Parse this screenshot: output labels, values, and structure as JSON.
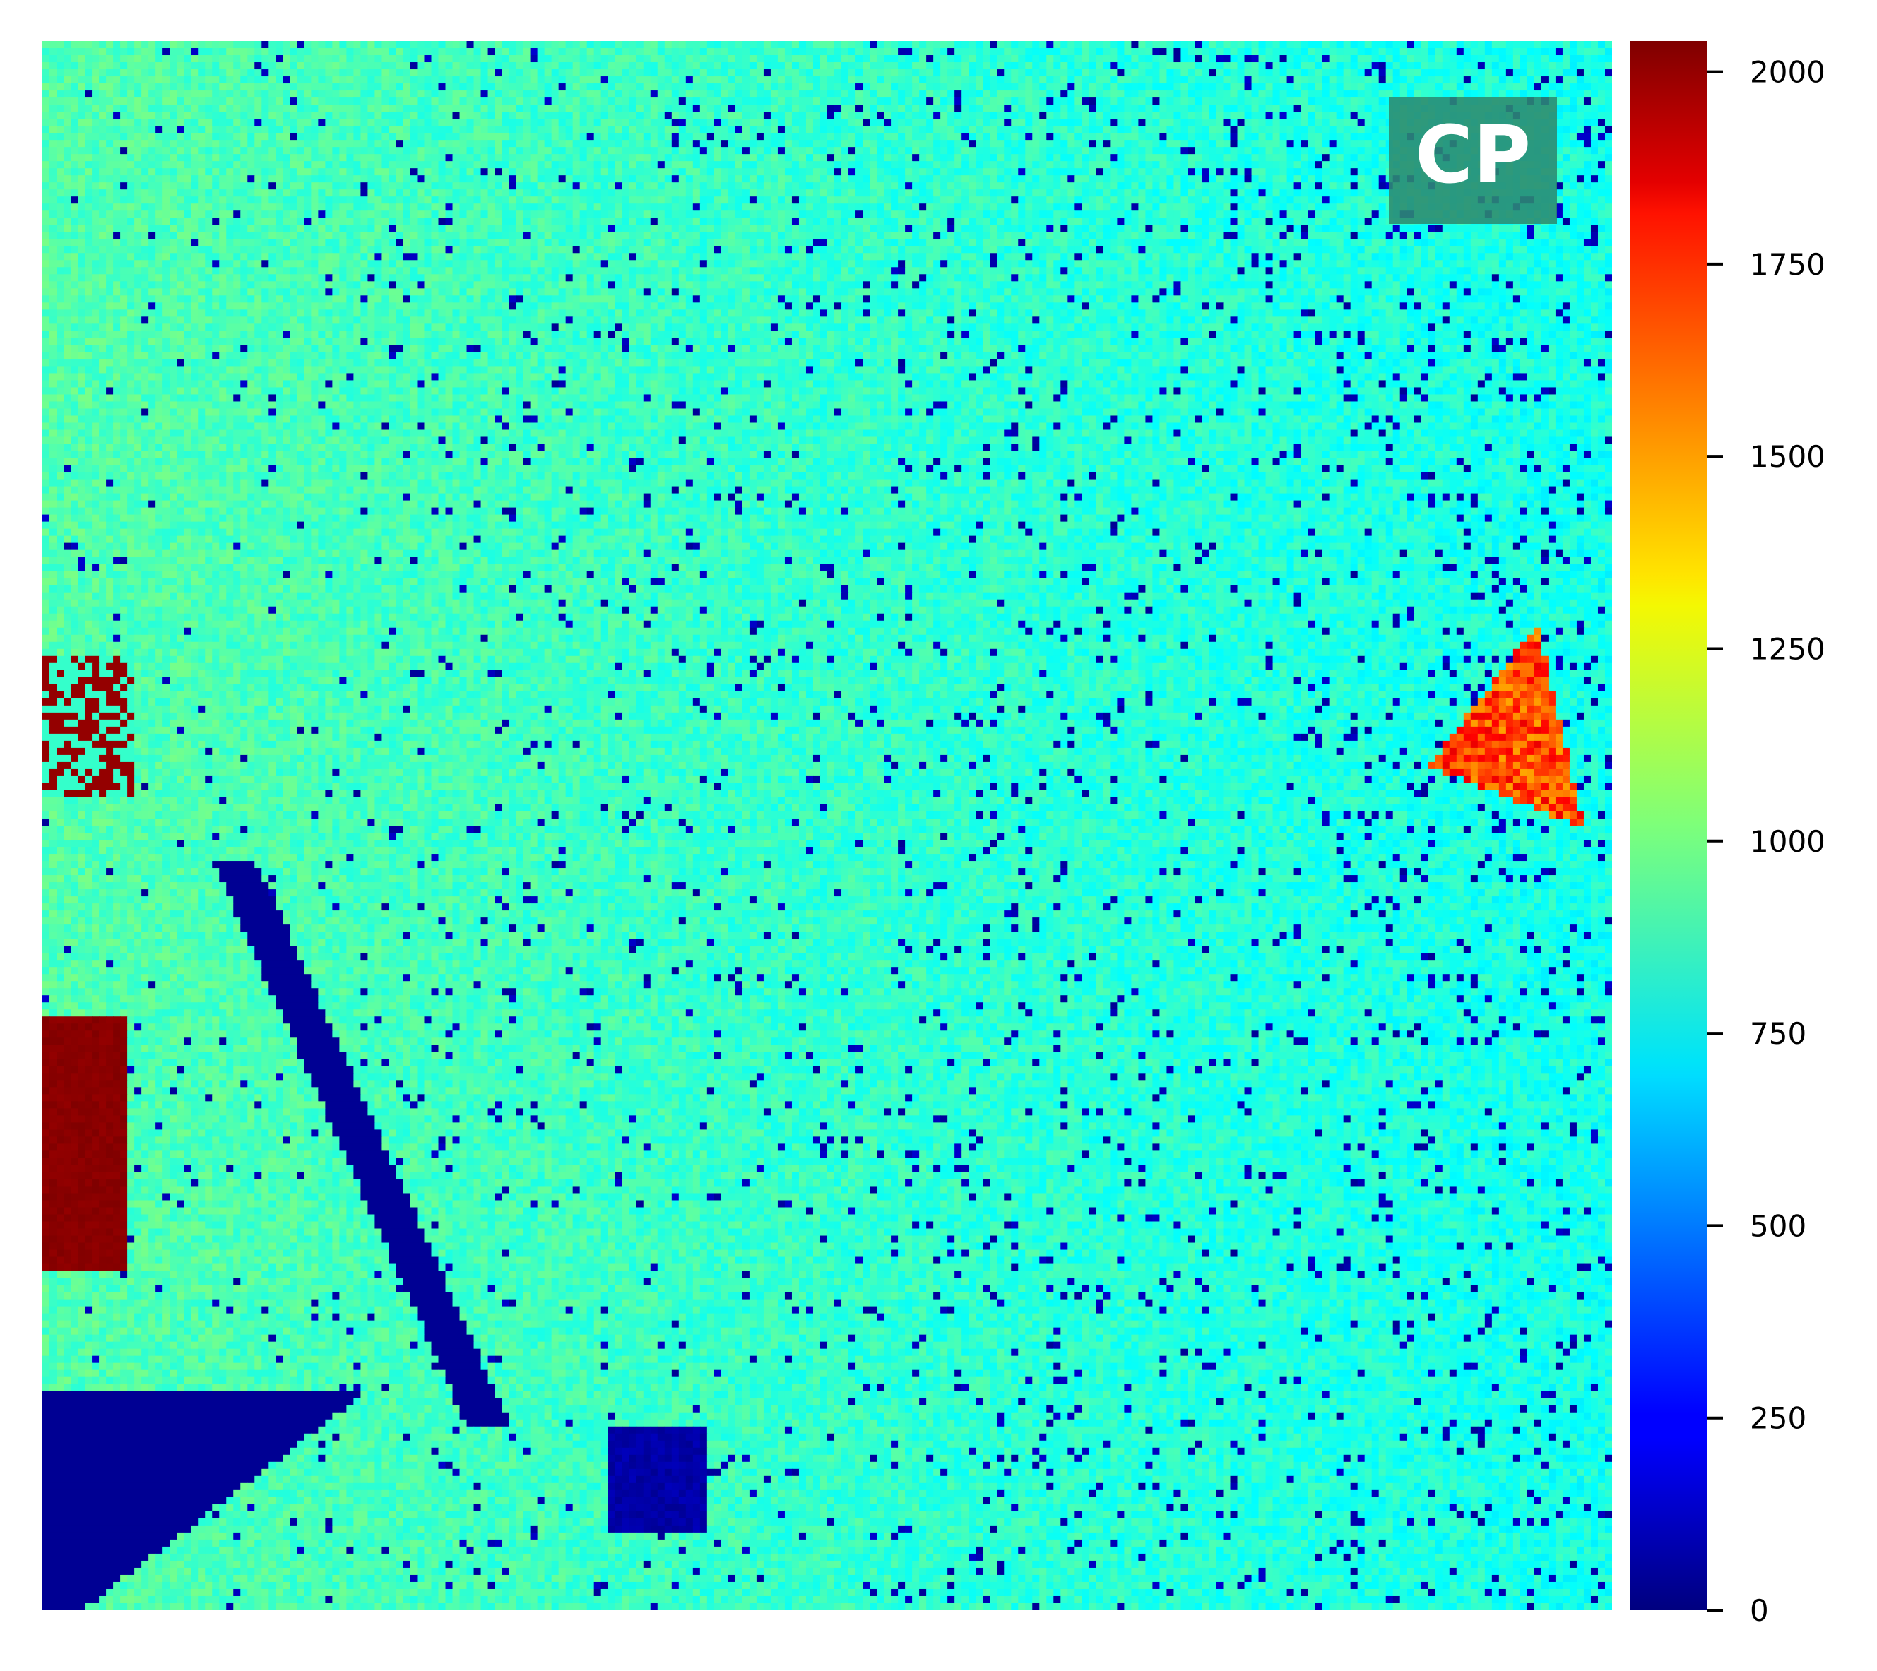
{
  "chart_data": {
    "type": "heatmap",
    "title": "",
    "xlabel": "",
    "ylabel": "",
    "colormap": "jet",
    "value_range": [
      0,
      2040
    ],
    "colorbar": {
      "ticks": [
        0,
        250,
        500,
        750,
        1000,
        1250,
        1500,
        1750,
        2000
      ],
      "labels": [
        "0",
        "250",
        "500",
        "750",
        "1000",
        "1250",
        "1500",
        "1750",
        "2000"
      ]
    },
    "x_axis_visible": false,
    "y_axis_visible": false,
    "annotation": "CP",
    "annotation_placement": "top-right",
    "background_level_estimate": 870,
    "regions_estimated": [
      {
        "description": "upper-right triangular hot spot",
        "value_estimate": 1600
      },
      {
        "description": "left-edge saturated patch",
        "value_estimate": 2000
      },
      {
        "description": "lower-left dark region",
        "value_estimate": 40
      }
    ]
  },
  "colors": {
    "annotation_box": "#2e8b6f",
    "annotation_text": "#ffffff",
    "background": "#ffffff"
  }
}
